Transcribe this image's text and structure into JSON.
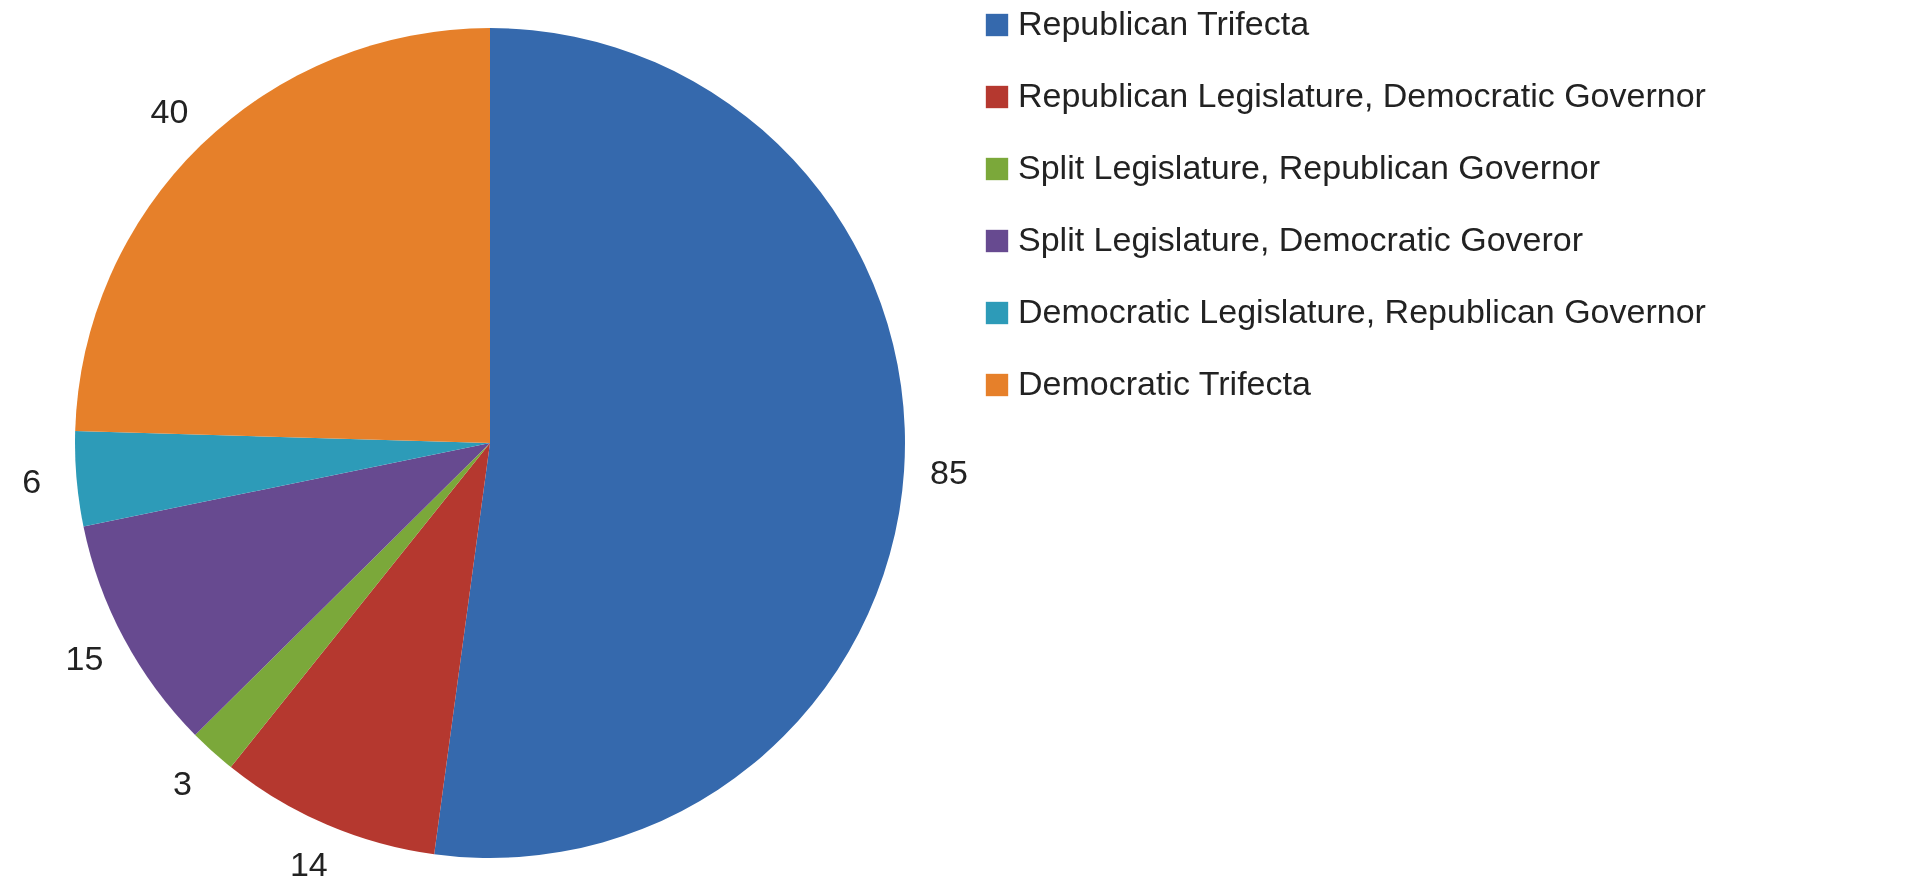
{
  "chart_data": {
    "type": "pie",
    "categories": [
      "Republican Trifecta",
      "Republican Legislature, Democratic Governor",
      "Split Legislature, Republican Governor",
      "Split Legislature, Democratic Goveror",
      "Democratic Legislature, Republican Governor",
      "Democratic Trifecta"
    ],
    "values": [
      85,
      14,
      3,
      15,
      6,
      40
    ],
    "colors": [
      "#3569ad",
      "#b5382f",
      "#7ba83a",
      "#674a90",
      "#2d9bb8",
      "#e6802a"
    ],
    "data_labels": true,
    "legend": "right"
  }
}
